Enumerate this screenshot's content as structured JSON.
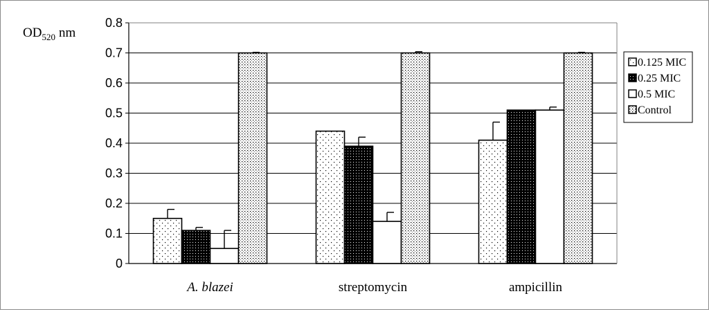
{
  "chart_data": {
    "type": "bar",
    "ylabel": {
      "main": "OD",
      "sub": "520",
      "unit": "nm"
    },
    "ylim": [
      0,
      0.8
    ],
    "yticks": [
      "0",
      "0.1",
      "0.2",
      "0.3",
      "0.4",
      "0.5",
      "0.6",
      "0.7",
      "0.8"
    ],
    "grid": true,
    "legend_position": "right",
    "categories": [
      "A. blazei",
      "streptomycin",
      "ampicillin"
    ],
    "series": [
      {
        "name": "0.125 MIC",
        "pattern": "sparse-dots",
        "values": [
          0.15,
          0.44,
          0.41
        ],
        "errors": [
          0.03,
          0.0,
          0.06
        ]
      },
      {
        "name": "0.25 MIC",
        "pattern": "dense-dots",
        "values": [
          0.11,
          0.39,
          0.51
        ],
        "errors": [
          0.01,
          0.03,
          0.0
        ]
      },
      {
        "name": "0.5 MIC",
        "pattern": "white",
        "values": [
          0.05,
          0.14,
          0.51
        ],
        "errors": [
          0.06,
          0.03,
          0.01
        ]
      },
      {
        "name": "Control",
        "pattern": "grid-dots",
        "values": [
          0.7,
          0.7,
          0.7
        ],
        "errors": [
          0.002,
          0.004,
          0.002
        ]
      }
    ]
  }
}
